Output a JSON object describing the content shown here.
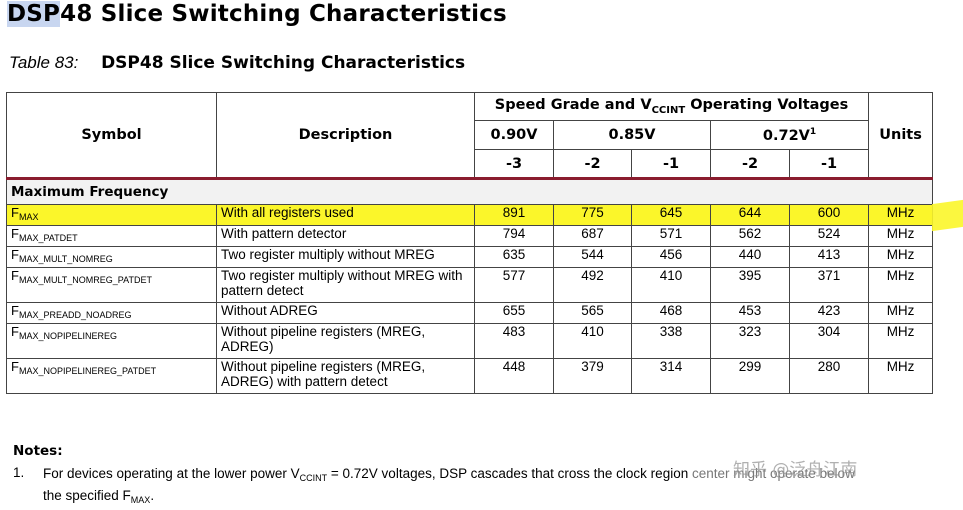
{
  "title": {
    "selected": "DSP",
    "rest": "48 Slice Switching Characteristics"
  },
  "caption": {
    "number": "Table 83:",
    "title": "DSP48 Slice Switching Characteristics"
  },
  "headers": {
    "symbol": "Symbol",
    "description": "Description",
    "speed_grade_prefix": "Speed Grade and V",
    "speed_grade_sub": "CCINT",
    "speed_grade_suffix": " Operating Voltages",
    "units": "Units",
    "voltages": [
      "0.90V",
      "0.85V",
      "0.72V"
    ],
    "voltage_sup": "1",
    "grades": [
      "-3",
      "-2",
      "-1",
      "-2",
      "-1"
    ]
  },
  "section": "Maximum Frequency",
  "rows": [
    {
      "sym": "F",
      "sub": "MAX",
      "desc": "With all registers used",
      "v": [
        "891",
        "775",
        "645",
        "644",
        "600"
      ],
      "unit": "MHz"
    },
    {
      "sym": "F",
      "sub": "MAX_PATDET",
      "desc": "With pattern detector",
      "v": [
        "794",
        "687",
        "571",
        "562",
        "524"
      ],
      "unit": "MHz"
    },
    {
      "sym": "F",
      "sub": "MAX_MULT_NOMREG",
      "desc": "Two register multiply without MREG",
      "v": [
        "635",
        "544",
        "456",
        "440",
        "413"
      ],
      "unit": "MHz"
    },
    {
      "sym": "F",
      "sub": "MAX_MULT_NOMREG_PATDET",
      "desc": "Two register multiply without MREG with pattern detect",
      "v": [
        "577",
        "492",
        "410",
        "395",
        "371"
      ],
      "unit": "MHz"
    },
    {
      "sym": "F",
      "sub": "MAX_PREADD_NOADREG",
      "desc": "Without ADREG",
      "v": [
        "655",
        "565",
        "468",
        "453",
        "423"
      ],
      "unit": "MHz"
    },
    {
      "sym": "F",
      "sub": "MAX_NOPIPELINEREG",
      "desc": "Without pipeline registers (MREG, ADREG)",
      "v": [
        "483",
        "410",
        "338",
        "323",
        "304"
      ],
      "unit": "MHz"
    },
    {
      "sym": "F",
      "sub": "MAX_NOPIPELINEREG_PATDET",
      "desc": "Without pipeline registers (MREG, ADREG) with pattern detect",
      "v": [
        "448",
        "379",
        "314",
        "299",
        "280"
      ],
      "unit": "MHz"
    }
  ],
  "notes": {
    "title": "Notes:",
    "items": [
      {
        "num": "1.",
        "pre": "For devices operating at the lower power V",
        "sub": "CCINT",
        "mid": " = 0.72V voltages, DSP cascades that cross the clock region ",
        "obscured": "center might operate below",
        "line2_pre": " the specified F",
        "line2_sub": "MAX",
        "line2_post": "."
      }
    ]
  },
  "watermark": "知乎 @泛舟江南",
  "colors": {
    "highlight": "#fbf62a",
    "header_rule": "#8a1c2e",
    "selection": "#c8d6f0"
  }
}
